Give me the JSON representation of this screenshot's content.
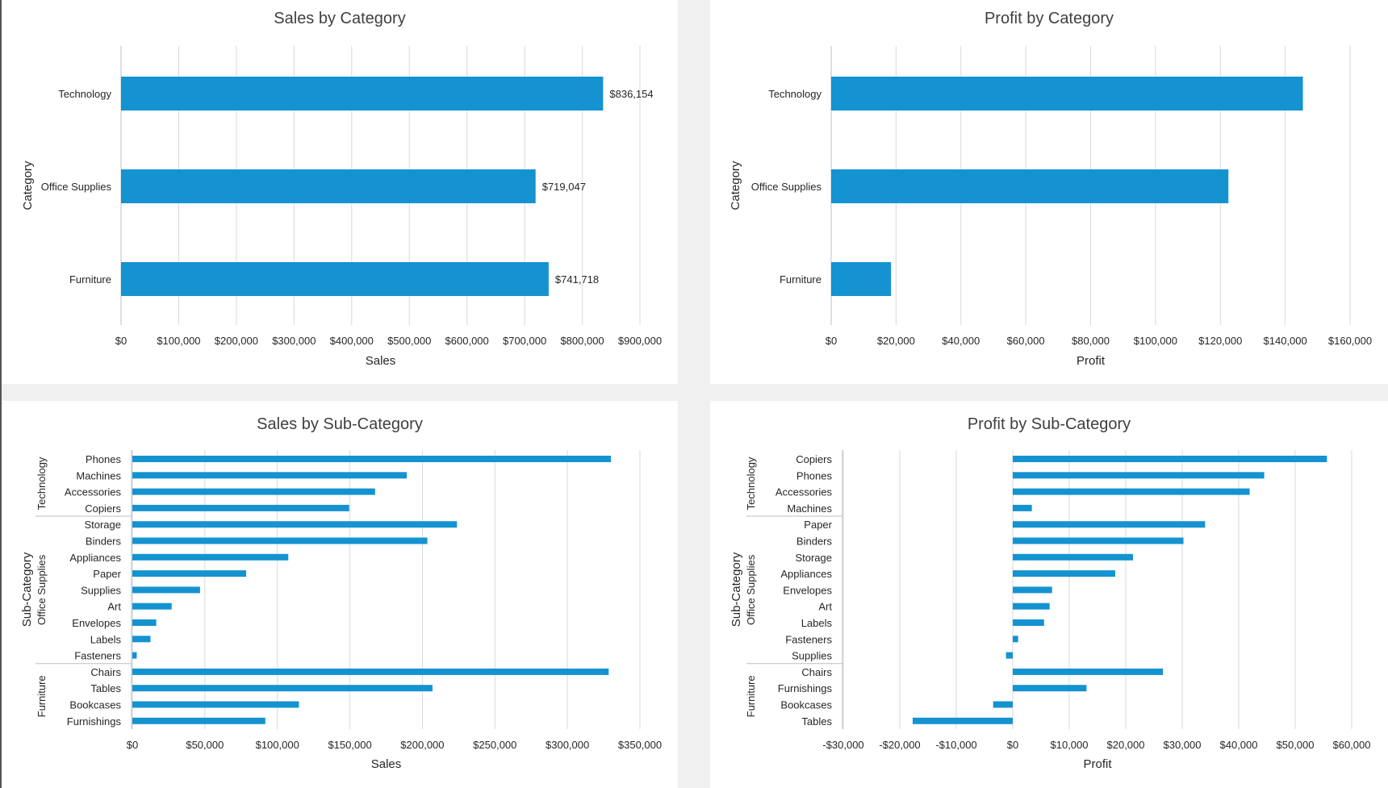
{
  "colors": {
    "bar": "#1493d0",
    "grid": "#d9d9d9",
    "text": "#262626",
    "title": "#404040"
  },
  "chart_data": [
    {
      "type": "bar",
      "orientation": "horizontal",
      "title": "Sales by Category",
      "xlabel": "Sales",
      "ylabel": "Category",
      "categories": [
        "Technology",
        "Office Supplies",
        "Furniture"
      ],
      "values": [
        836154,
        719047,
        741718
      ],
      "data_labels": [
        "$836,154",
        "$719,047",
        "$741,718"
      ],
      "xlim": [
        0,
        900000
      ],
      "x_ticks": [
        "$0",
        "$100,000",
        "$200,000",
        "$300,000",
        "$400,000",
        "$500,000",
        "$600,000",
        "$700,000",
        "$800,000",
        "$900,000"
      ],
      "grid": true
    },
    {
      "type": "bar",
      "orientation": "horizontal",
      "title": "Profit by Category",
      "xlabel": "Profit",
      "ylabel": "Category",
      "categories": [
        "Technology",
        "Office Supplies",
        "Furniture"
      ],
      "values": [
        145455,
        122491,
        18451
      ],
      "xlim": [
        0,
        160000
      ],
      "x_ticks": [
        "$0",
        "$20,000",
        "$40,000",
        "$60,000",
        "$80,000",
        "$100,000",
        "$120,000",
        "$140,000",
        "$160,000"
      ],
      "grid": true
    },
    {
      "type": "bar",
      "orientation": "horizontal",
      "title": "Sales by Sub-Category",
      "xlabel": "Sales",
      "ylabel": "Sub-Category",
      "groups": [
        {
          "name": "Technology",
          "categories": [
            "Phones",
            "Machines",
            "Accessories",
            "Copiers"
          ],
          "values": [
            330007,
            189239,
            167380,
            149528
          ]
        },
        {
          "name": "Office Supplies",
          "categories": [
            "Storage",
            "Binders",
            "Appliances",
            "Paper",
            "Supplies",
            "Art",
            "Envelopes",
            "Labels",
            "Fasteners"
          ],
          "values": [
            223844,
            203413,
            107532,
            78479,
            46674,
            27119,
            16476,
            12486,
            3024
          ]
        },
        {
          "name": "Furniture",
          "categories": [
            "Chairs",
            "Tables",
            "Bookcases",
            "Furnishings"
          ],
          "values": [
            328449,
            206966,
            114880,
            91705
          ]
        }
      ],
      "xlim": [
        0,
        350000
      ],
      "x_ticks": [
        "$0",
        "$50,000",
        "$100,000",
        "$150,000",
        "$200,000",
        "$250,000",
        "$300,000",
        "$350,000"
      ],
      "grid": true
    },
    {
      "type": "bar",
      "orientation": "horizontal",
      "title": "Profit by Sub-Category",
      "xlabel": "Profit",
      "ylabel": "Sub-Category",
      "groups": [
        {
          "name": "Technology",
          "categories": [
            "Copiers",
            "Phones",
            "Accessories",
            "Machines"
          ],
          "values": [
            55618,
            44516,
            41937,
            3385
          ]
        },
        {
          "name": "Office Supplies",
          "categories": [
            "Paper",
            "Binders",
            "Storage",
            "Appliances",
            "Envelopes",
            "Art",
            "Labels",
            "Fasteners",
            "Supplies"
          ],
          "values": [
            34054,
            30222,
            21279,
            18138,
            6964,
            6528,
            5546,
            950,
            -1189
          ]
        },
        {
          "name": "Furniture",
          "categories": [
            "Chairs",
            "Furnishings",
            "Bookcases",
            "Tables"
          ],
          "values": [
            26590,
            13059,
            -3473,
            -17725
          ]
        }
      ],
      "xlim": [
        -30000,
        60000
      ],
      "x_ticks": [
        "-$30,000",
        "-$20,000",
        "-$10,000",
        "$0",
        "$10,000",
        "$20,000",
        "$30,000",
        "$40,000",
        "$50,000",
        "$60,000"
      ],
      "grid": true
    }
  ]
}
